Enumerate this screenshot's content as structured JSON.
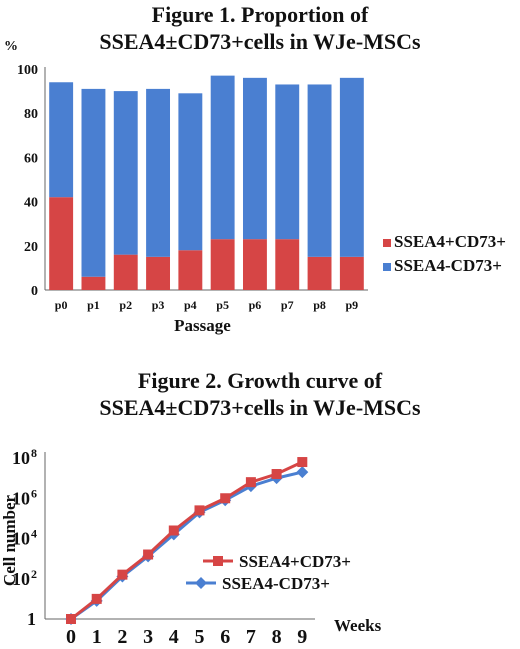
{
  "chart_data": [
    {
      "type": "bar",
      "stacked": true,
      "title": "Figure 1. Proportion of",
      "subtitle": "SSEA4±CD73+cells in WJe-MSCs",
      "ylabel": "%",
      "xlabel": "Passage",
      "ylim": [
        0,
        100
      ],
      "yticks": [
        "0",
        "20",
        "40",
        "60",
        "80",
        "100"
      ],
      "categories": [
        "p0",
        "p1",
        "p2",
        "p3",
        "p4",
        "p5",
        "p6",
        "p7",
        "p8",
        "p9"
      ],
      "series": [
        {
          "name": "SSEA4+CD73+",
          "color": "#d64545",
          "values": [
            42,
            6,
            16,
            15,
            18,
            23,
            23,
            23,
            15,
            15
          ]
        },
        {
          "name": "SSEA4-CD73+",
          "color": "#4a7fd1",
          "values": [
            52,
            85,
            74,
            76,
            71,
            74,
            73,
            70,
            78,
            81
          ]
        }
      ],
      "legend": "right"
    },
    {
      "type": "line",
      "title": "Figure 2. Growth curve of",
      "subtitle": "SSEA4±CD73+cells in WJe-MSCs",
      "ylabel": "Cell number",
      "xlabel": "Weeks",
      "yscale": "log",
      "ylim": [
        1,
        100000000
      ],
      "yticks": [
        {
          "value": 1,
          "base": "1",
          "exp": ""
        },
        {
          "value": 100,
          "base": "10",
          "exp": "2"
        },
        {
          "value": 10000,
          "base": "10",
          "exp": "4"
        },
        {
          "value": 1000000,
          "base": "10",
          "exp": "6"
        },
        {
          "value": 100000000,
          "base": "10",
          "exp": "8"
        }
      ],
      "x": [
        0,
        1,
        2,
        3,
        4,
        5,
        6,
        7,
        8,
        9
      ],
      "series": [
        {
          "name": "SSEA4+CD73+",
          "color": "#d64545",
          "marker": "square",
          "values": [
            1,
            10,
            160,
            1600,
            25000,
            250000,
            1000000,
            6300000,
            16000000,
            63000000
          ]
        },
        {
          "name": "SSEA4-CD73+",
          "color": "#4a7fd1",
          "marker": "diamond",
          "values": [
            1,
            8,
            130,
            1300,
            16000,
            200000,
            800000,
            4000000,
            10000000,
            20000000
          ]
        }
      ],
      "legend": "bottom-right"
    }
  ]
}
